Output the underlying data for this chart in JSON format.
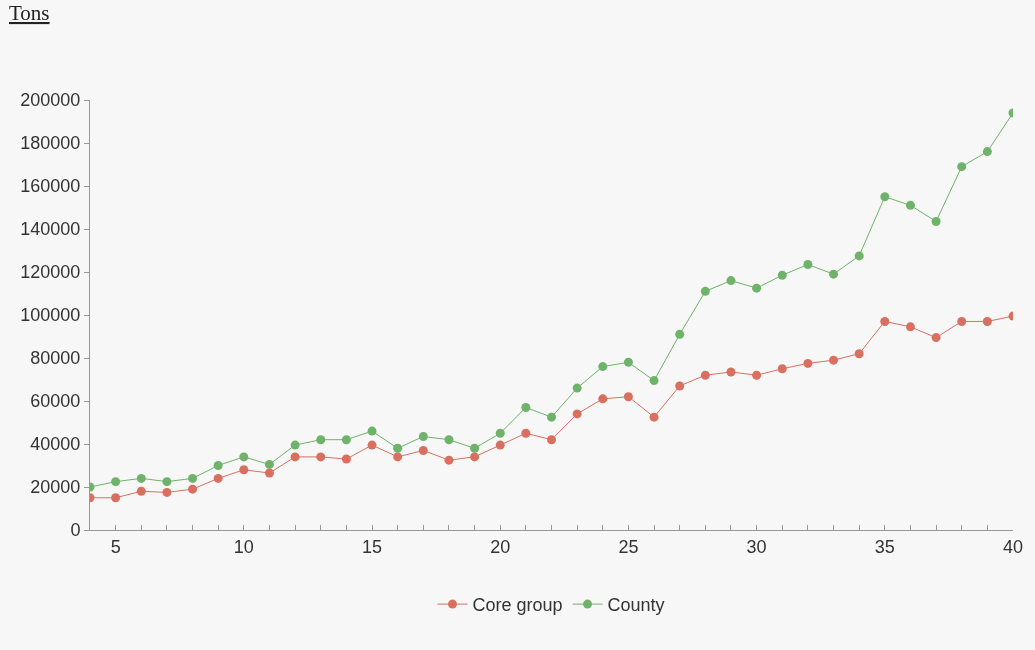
{
  "chart_data": {
    "type": "line",
    "ylabel": "Tons",
    "x": [
      4,
      5,
      6,
      7,
      8,
      9,
      10,
      11,
      12,
      13,
      14,
      15,
      16,
      17,
      18,
      19,
      20,
      21,
      22,
      23,
      24,
      25,
      26,
      27,
      28,
      29,
      30,
      31,
      32,
      33,
      34,
      35,
      36,
      37,
      38,
      39,
      40
    ],
    "series": [
      {
        "name": "Core group",
        "color": "#d9705f",
        "values": [
          15000,
          15000,
          18000,
          17500,
          19000,
          24000,
          28000,
          26500,
          34000,
          34000,
          33000,
          39500,
          34000,
          37000,
          32500,
          34000,
          39500,
          45000,
          42000,
          54000,
          61000,
          62000,
          52500,
          67000,
          72000,
          73500,
          72000,
          75000,
          77500,
          79000,
          82000,
          97000,
          94500,
          89500,
          97000,
          97000,
          99500
        ]
      },
      {
        "name": "County",
        "color": "#6fb36a",
        "values": [
          20000,
          22500,
          24000,
          22500,
          24000,
          30000,
          34000,
          30500,
          39500,
          42000,
          42000,
          46000,
          38000,
          43500,
          42000,
          38000,
          45000,
          57000,
          52500,
          66000,
          76000,
          78000,
          69500,
          91000,
          111000,
          116000,
          112500,
          118500,
          123500,
          119000,
          127500,
          155000,
          151000,
          143500,
          169000,
          176000,
          194000
        ]
      }
    ],
    "xlim": [
      4,
      40
    ],
    "xticks": [
      {
        "value": 4,
        "label": null
      },
      5,
      {
        "value": 6,
        "label": null
      },
      {
        "value": 7,
        "label": null
      },
      {
        "value": 8,
        "label": null
      },
      {
        "value": 9,
        "label": null
      },
      10,
      {
        "value": 11,
        "label": null
      },
      {
        "value": 12,
        "label": null
      },
      {
        "value": 13,
        "label": null
      },
      {
        "value": 14,
        "label": null
      },
      15,
      {
        "value": 16,
        "label": null
      },
      {
        "value": 17,
        "label": null
      },
      {
        "value": 18,
        "label": null
      },
      {
        "value": 19,
        "label": null
      },
      20,
      {
        "value": 21,
        "label": null
      },
      {
        "value": 22,
        "label": null
      },
      {
        "value": 23,
        "label": null
      },
      {
        "value": 24,
        "label": null
      },
      25,
      {
        "value": 26,
        "label": null
      },
      {
        "value": 27,
        "label": null
      },
      {
        "value": 28,
        "label": null
      },
      {
        "value": 29,
        "label": null
      },
      30,
      {
        "value": 31,
        "label": null
      },
      {
        "value": 32,
        "label": null
      },
      {
        "value": 33,
        "label": null
      },
      {
        "value": 34,
        "label": null
      },
      35,
      {
        "value": 36,
        "label": null
      },
      {
        "value": 37,
        "label": null
      },
      {
        "value": 38,
        "label": null
      },
      {
        "value": 39,
        "label": null
      },
      40
    ],
    "ylim": [
      0,
      200000
    ],
    "yticks": [
      0,
      20000,
      40000,
      60000,
      80000,
      100000,
      120000,
      140000,
      160000,
      180000,
      200000
    ],
    "grid": false,
    "legend": "bottom",
    "marker": "circle",
    "line_style": "solid"
  }
}
